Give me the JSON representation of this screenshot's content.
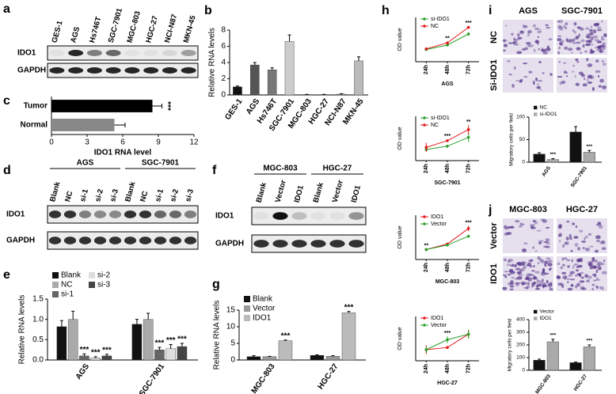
{
  "blots": [
    {
      "panel": "a",
      "lanes": [
        "GES-1",
        "AGS",
        "Hs746T",
        "SGC-7901",
        "MGC-803",
        "HGC-27",
        "NCI-N87",
        "MKN-45"
      ],
      "rows": [
        "IDO1",
        "GAPDH"
      ]
    },
    {
      "panel": "d",
      "groups": [
        {
          "name": "AGS",
          "lanes": [
            "Blank",
            "NC",
            "si-1",
            "si-2",
            "si-3"
          ]
        },
        {
          "name": "SGC-7901",
          "lanes": [
            "Blank",
            "NC",
            "si-1",
            "si-2",
            "si-3"
          ]
        }
      ],
      "rows": [
        "IDO1",
        "GAPDH"
      ]
    },
    {
      "panel": "f",
      "groups": [
        {
          "name": "MGC-803",
          "lanes": [
            "Blank",
            "Vector",
            "IDO1"
          ]
        },
        {
          "name": "HGC-27",
          "lanes": [
            "Blank",
            "Vector",
            "IDO1"
          ]
        }
      ],
      "rows": [
        "IDO1",
        "GAPDH"
      ]
    }
  ],
  "micrographs": [
    {
      "panel": "i",
      "columns": [
        "AGS",
        "SGC-7901"
      ],
      "rows": [
        "NC",
        "Si-IDO1"
      ]
    },
    {
      "panel": "j",
      "columns": [
        "MGC-803",
        "HGC-27"
      ],
      "rows": [
        "Vector",
        "IDO1"
      ]
    }
  ],
  "chart_data": [
    {
      "type": "bar",
      "panel": "b",
      "ylabel": "Relative RNA levels",
      "categories": [
        "GES-1",
        "AGS",
        "Hs746T",
        "SGC-7901",
        "MGC-803",
        "HGC-27",
        "NCI-N87",
        "MKN-45"
      ],
      "values": [
        1.0,
        3.7,
        3.1,
        6.6,
        0.05,
        0.05,
        0.1,
        4.2
      ],
      "errors": [
        0.1,
        0.3,
        0.25,
        0.8,
        0.02,
        0.02,
        0.05,
        0.5
      ],
      "colors": [
        "#111111",
        "#555555",
        "#777777",
        "#cccccc",
        "#555555",
        "#777777",
        "#999999",
        "#bbbbbb"
      ],
      "ylim": [
        0,
        8
      ],
      "yticks": [
        0,
        2,
        4,
        6,
        8
      ]
    },
    {
      "type": "hbar",
      "panel": "c",
      "xlabel": "IDO1 RNA level",
      "categories": [
        "Tumor",
        "Normal"
      ],
      "values": [
        8.5,
        5.3
      ],
      "errors": [
        0.8,
        0.9
      ],
      "colors": [
        "#000000",
        "#888888"
      ],
      "annotations": [
        "***",
        null
      ],
      "xlim": [
        0,
        12
      ],
      "xticks": [
        0,
        3,
        6,
        9,
        12
      ]
    },
    {
      "type": "bar",
      "panel": "e",
      "ylabel": "Relative RNA levels",
      "legend": "top-left",
      "categories": [
        "AGS",
        "SGC-7901"
      ],
      "series": [
        {
          "name": "Blank",
          "color": "#111111",
          "values": [
            0.82,
            0.88
          ],
          "errors": [
            0.15,
            0.12
          ]
        },
        {
          "name": "NC",
          "color": "#aaaaaa",
          "values": [
            1.0,
            1.0
          ],
          "errors": [
            0.2,
            0.15
          ]
        },
        {
          "name": "si-1",
          "color": "#666666",
          "values": [
            0.1,
            0.25
          ],
          "errors": [
            0.05,
            0.06
          ],
          "annotations": [
            "***",
            "***"
          ]
        },
        {
          "name": "si-2",
          "color": "#dddddd",
          "values": [
            0.05,
            0.28
          ],
          "errors": [
            0.03,
            0.1
          ],
          "annotations": [
            "***",
            "***"
          ]
        },
        {
          "name": "si-3",
          "color": "#444444",
          "values": [
            0.1,
            0.33
          ],
          "errors": [
            0.04,
            0.08
          ],
          "annotations": [
            "***",
            "***"
          ]
        }
      ],
      "ylim": [
        0,
        1.5
      ],
      "yticks": [
        {
          "value": 0,
          "label": "0.0"
        },
        {
          "value": 0.5,
          "label": "0.5"
        },
        {
          "value": 1,
          "label": "1.0"
        },
        {
          "value": 1.5,
          "label": "1.5"
        }
      ]
    },
    {
      "type": "bar",
      "panel": "g",
      "ylabel": "Relative RNA levels",
      "legend": "top-left",
      "categories": [
        "MGC-803",
        "HGC-27"
      ],
      "series": [
        {
          "name": "Blank",
          "color": "#111111",
          "values": [
            1.0,
            1.4
          ],
          "errors": [
            0.3,
            0.15
          ]
        },
        {
          "name": "Vector",
          "color": "#999999",
          "values": [
            1.0,
            1.1
          ],
          "errors": [
            0.1,
            0.2
          ]
        },
        {
          "name": "IDO1",
          "color": "#bbbbbb",
          "values": [
            5.8,
            14.2
          ],
          "errors": [
            0.2,
            0.4
          ],
          "annotations": [
            "***",
            "***"
          ]
        }
      ],
      "ylim": [
        0,
        15
      ],
      "yticks": [
        0,
        5,
        10,
        15
      ]
    },
    {
      "type": "line",
      "panel": "h",
      "ylabel": "OD value",
      "xlabel": "AGS",
      "legend": "top-left",
      "categories": [
        "24h",
        "48h",
        "72h"
      ],
      "series": [
        {
          "name": "si-IDO1",
          "color": "#2ca02c",
          "values": [
            0.55,
            0.75,
            1.25
          ],
          "errors": [
            0.05,
            0.05,
            0.08
          ]
        },
        {
          "name": "NC",
          "color": "#e41a1c",
          "values": [
            0.58,
            0.85,
            1.55
          ],
          "errors": [
            0.05,
            0.05,
            0.06
          ]
        }
      ],
      "annotations": [
        null,
        "**",
        "***"
      ],
      "ylim": [
        0,
        2
      ]
    },
    {
      "type": "line",
      "ylabel": "OD value",
      "xlabel": "SGC-7901",
      "legend": "top-left",
      "categories": [
        "24h",
        "48h",
        "72h"
      ],
      "series": [
        {
          "name": "si-IDO1",
          "color": "#2ca02c",
          "values": [
            0.5,
            0.65,
            1.05
          ],
          "errors": [
            0.08,
            0.05,
            0.2
          ]
        },
        {
          "name": "NC",
          "color": "#e41a1c",
          "values": [
            0.6,
            0.9,
            1.4
          ],
          "errors": [
            0.2,
            0.05,
            0.2
          ]
        }
      ],
      "annotations": [
        null,
        "***",
        "**"
      ],
      "ylim": [
        0,
        2
      ]
    },
    {
      "type": "line",
      "ylabel": "OD value",
      "xlabel": "MGC-803",
      "legend": "top-left",
      "categories": [
        "24h",
        "48h",
        "72h"
      ],
      "series": [
        {
          "name": "IDO1",
          "color": "#e41a1c",
          "values": [
            0.45,
            0.7,
            1.4
          ],
          "errors": [
            0.03,
            0.05,
            0.12
          ]
        },
        {
          "name": "Vector",
          "color": "#2ca02c",
          "values": [
            0.45,
            0.65,
            1.05
          ],
          "errors": [
            0.03,
            0.05,
            0.05
          ]
        }
      ],
      "annotations": [
        "**",
        null,
        "***"
      ],
      "ylim": [
        0,
        2
      ]
    },
    {
      "type": "line",
      "ylabel": "OD value",
      "xlabel": "HGC-27",
      "legend": "top-left",
      "categories": [
        "24h",
        "48h",
        "72h"
      ],
      "series": [
        {
          "name": "IDO1",
          "color": "#e41a1c",
          "values": [
            0.5,
            0.6,
            1.2
          ],
          "errors": [
            0.2,
            0.05,
            0.2
          ]
        },
        {
          "name": "Vector",
          "color": "#2ca02c",
          "values": [
            0.5,
            0.95,
            1.2
          ],
          "errors": [
            0.15,
            0.15,
            0.2
          ]
        }
      ],
      "annotations": [
        null,
        "***",
        null
      ],
      "ylim": [
        0,
        2
      ]
    },
    {
      "type": "bar",
      "ylabel": "Migratory cells per field",
      "legend": "top-left",
      "categories": [
        "AGS",
        "SGC-7901"
      ],
      "series": [
        {
          "name": "NC",
          "color": "#111111",
          "values": [
            18,
            67
          ],
          "errors": [
            3,
            12
          ]
        },
        {
          "name": "si-IDO1",
          "color": "#aaaaaa",
          "values": [
            6,
            22
          ],
          "errors": [
            2,
            4
          ],
          "annotations": [
            "***",
            "***"
          ]
        }
      ],
      "ylim": [
        0,
        100
      ],
      "yticks": [
        0,
        50,
        100
      ]
    },
    {
      "type": "bar",
      "ylabel": "Migratory cells per field",
      "legend": "top-left",
      "categories": [
        "MGC-803",
        "HGC-27"
      ],
      "series": [
        {
          "name": "Vector",
          "color": "#111111",
          "values": [
            80,
            60
          ],
          "errors": [
            8,
            5
          ]
        },
        {
          "name": "IDO1",
          "color": "#aaaaaa",
          "values": [
            225,
            185
          ],
          "errors": [
            20,
            15
          ],
          "annotations": [
            "***",
            "***"
          ]
        }
      ],
      "ylim": [
        0,
        400
      ],
      "yticks": [
        0,
        100,
        200,
        300,
        400
      ]
    }
  ]
}
